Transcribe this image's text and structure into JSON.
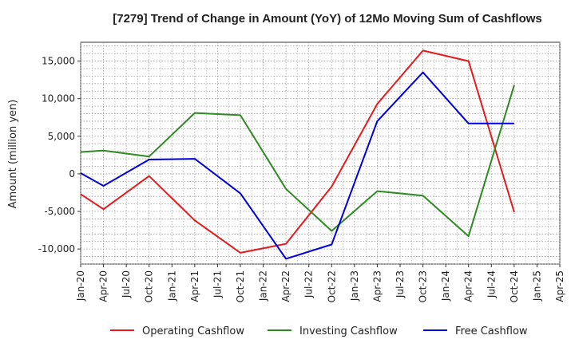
{
  "chart_data": {
    "type": "line",
    "title": "[7279]  Trend of Change in Amount (YoY) of 12Mo Moving Sum of Cashflows",
    "xlabel": "",
    "ylabel": "Amount (million yen)",
    "categories": [
      "Jan-20",
      "Apr-20",
      "Jul-20",
      "Oct-20",
      "Jan-21",
      "Apr-21",
      "Jul-21",
      "Oct-21",
      "Jan-22",
      "Apr-22",
      "Jul-22",
      "Oct-22",
      "Jan-23",
      "Apr-23",
      "Jul-23",
      "Oct-23",
      "Jan-24",
      "Apr-24",
      "Jul-24",
      "Oct-24",
      "Jan-25",
      "Apr-25"
    ],
    "ylim": [
      -12000,
      17500
    ],
    "yticks": [
      -10000,
      -5000,
      0,
      5000,
      10000,
      15000
    ],
    "ytick_labels": [
      "-10,000",
      "-5,000",
      "0",
      "5,000",
      "10,000",
      "15,000"
    ],
    "grid": true,
    "legend_position": "bottom",
    "series": [
      {
        "name": "Operating Cashflow",
        "color": "#e41a1c",
        "points": [
          [
            "Jan-20",
            -2700
          ],
          [
            "Apr-20",
            -4700
          ],
          [
            "Oct-20",
            -300
          ],
          [
            "Apr-21",
            -6200
          ],
          [
            "Oct-21",
            -10500
          ],
          [
            "Apr-22",
            -9300
          ],
          [
            "Oct-22",
            -1700
          ],
          [
            "Apr-23",
            9300
          ],
          [
            "Oct-23",
            16400
          ],
          [
            "Apr-24",
            15000
          ],
          [
            "Oct-24",
            -5100
          ]
        ]
      },
      {
        "name": "Investing Cashflow",
        "color": "#2e8b22",
        "points": [
          [
            "Jan-20",
            2900
          ],
          [
            "Apr-20",
            3100
          ],
          [
            "Oct-20",
            2300
          ],
          [
            "Apr-21",
            8100
          ],
          [
            "Oct-21",
            7800
          ],
          [
            "Apr-22",
            -2000
          ],
          [
            "Oct-22",
            -7600
          ],
          [
            "Apr-23",
            -2300
          ],
          [
            "Oct-23",
            -2900
          ],
          [
            "Apr-24",
            -8300
          ],
          [
            "Oct-24",
            11800
          ]
        ]
      },
      {
        "name": "Free Cashflow",
        "color": "#0000dd",
        "points": [
          [
            "Jan-20",
            100
          ],
          [
            "Apr-20",
            -1600
          ],
          [
            "Oct-20",
            1900
          ],
          [
            "Apr-21",
            2000
          ],
          [
            "Oct-21",
            -2600
          ],
          [
            "Apr-22",
            -11300
          ],
          [
            "Oct-22",
            -9400
          ],
          [
            "Apr-23",
            7000
          ],
          [
            "Oct-23",
            13500
          ],
          [
            "Apr-24",
            6700
          ],
          [
            "Oct-24",
            6700
          ]
        ]
      }
    ]
  }
}
